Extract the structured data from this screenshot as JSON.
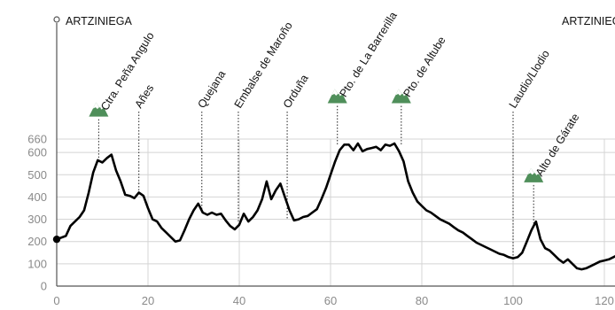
{
  "chart_data": {
    "type": "line",
    "title": "",
    "xlabel": "",
    "ylabel": "",
    "xlim": [
      0,
      123
    ],
    "ylim": [
      0,
      660
    ],
    "x_ticks": [
      0,
      20,
      40,
      60,
      80,
      100,
      120
    ],
    "y_ticks": [
      0,
      100,
      200,
      300,
      400,
      500,
      600,
      660
    ],
    "grid": true,
    "start_label": "ARTZINIEGA",
    "end_label": "ARTZINIEGA",
    "start_point": {
      "x": 0,
      "y": 210
    },
    "series": [
      {
        "points": [
          [
            0,
            210
          ],
          [
            2,
            225
          ],
          [
            3,
            270
          ],
          [
            5,
            310
          ],
          [
            6,
            340
          ],
          [
            7,
            420
          ],
          [
            8,
            510
          ],
          [
            9,
            565
          ],
          [
            10,
            555
          ],
          [
            11,
            575
          ],
          [
            12,
            590
          ],
          [
            13,
            520
          ],
          [
            14,
            470
          ],
          [
            15,
            410
          ],
          [
            16,
            405
          ],
          [
            17,
            395
          ],
          [
            18,
            420
          ],
          [
            19,
            405
          ],
          [
            20,
            350
          ],
          [
            21,
            300
          ],
          [
            22,
            290
          ],
          [
            23,
            260
          ],
          [
            24,
            240
          ],
          [
            25,
            220
          ],
          [
            26,
            200
          ],
          [
            27,
            205
          ],
          [
            28,
            250
          ],
          [
            29,
            300
          ],
          [
            30,
            340
          ],
          [
            31,
            370
          ],
          [
            32,
            330
          ],
          [
            33,
            320
          ],
          [
            34,
            330
          ],
          [
            35,
            320
          ],
          [
            36,
            325
          ],
          [
            37,
            295
          ],
          [
            38,
            270
          ],
          [
            39,
            255
          ],
          [
            40,
            275
          ],
          [
            41,
            325
          ],
          [
            42,
            290
          ],
          [
            43,
            310
          ],
          [
            44,
            340
          ],
          [
            45,
            390
          ],
          [
            46,
            470
          ],
          [
            47,
            390
          ],
          [
            48,
            430
          ],
          [
            49,
            460
          ],
          [
            50,
            400
          ],
          [
            51,
            340
          ],
          [
            52,
            295
          ],
          [
            53,
            300
          ],
          [
            54,
            310
          ],
          [
            55,
            315
          ],
          [
            56,
            330
          ],
          [
            57,
            345
          ],
          [
            58,
            390
          ],
          [
            59,
            440
          ],
          [
            60,
            500
          ],
          [
            61,
            560
          ],
          [
            62,
            610
          ],
          [
            63,
            635
          ],
          [
            64,
            635
          ],
          [
            65,
            610
          ],
          [
            66,
            640
          ],
          [
            67,
            605
          ],
          [
            68,
            615
          ],
          [
            69,
            620
          ],
          [
            70,
            625
          ],
          [
            71,
            610
          ],
          [
            72,
            635
          ],
          [
            73,
            630
          ],
          [
            74,
            640
          ],
          [
            75,
            605
          ],
          [
            76,
            560
          ],
          [
            77,
            470
          ],
          [
            78,
            420
          ],
          [
            79,
            380
          ],
          [
            80,
            360
          ],
          [
            81,
            340
          ],
          [
            82,
            330
          ],
          [
            83,
            315
          ],
          [
            84,
            300
          ],
          [
            85,
            290
          ],
          [
            86,
            280
          ],
          [
            87,
            265
          ],
          [
            88,
            250
          ],
          [
            89,
            240
          ],
          [
            90,
            225
          ],
          [
            91,
            210
          ],
          [
            92,
            195
          ],
          [
            93,
            185
          ],
          [
            94,
            175
          ],
          [
            95,
            165
          ],
          [
            96,
            155
          ],
          [
            97,
            145
          ],
          [
            98,
            140
          ],
          [
            99,
            130
          ],
          [
            100,
            125
          ],
          [
            101,
            130
          ],
          [
            102,
            150
          ],
          [
            103,
            200
          ],
          [
            104,
            250
          ],
          [
            105,
            290
          ],
          [
            106,
            210
          ],
          [
            107,
            170
          ],
          [
            108,
            160
          ],
          [
            109,
            140
          ],
          [
            110,
            120
          ],
          [
            111,
            105
          ],
          [
            112,
            120
          ],
          [
            113,
            100
          ],
          [
            114,
            80
          ],
          [
            115,
            75
          ],
          [
            116,
            80
          ],
          [
            117,
            90
          ],
          [
            118,
            100
          ],
          [
            119,
            110
          ],
          [
            120,
            115
          ],
          [
            121,
            120
          ],
          [
            122,
            130
          ],
          [
            123,
            140
          ]
        ]
      }
    ],
    "places": [
      {
        "name": "Ctra. Peña Angulo",
        "x": 9.2,
        "y": 570,
        "mountain": true
      },
      {
        "name": "Añes",
        "x": 18,
        "y": 420,
        "mountain": false
      },
      {
        "name": "Quejana",
        "x": 31.8,
        "y": 330,
        "mountain": false
      },
      {
        "name": "Embalse de Maroño",
        "x": 39.8,
        "y": 290,
        "mountain": false
      },
      {
        "name": "Orduña",
        "x": 50.5,
        "y": 300,
        "mountain": false
      },
      {
        "name": "Pto. de La Barrerilla",
        "x": 61.5,
        "y": 630,
        "mountain": true
      },
      {
        "name": "Pto. de Altube",
        "x": 75.5,
        "y": 630,
        "mountain": true
      },
      {
        "name": "Laudio/Llodio",
        "x": 100,
        "y": 130,
        "mountain": false
      },
      {
        "name": "Alto de Gárate",
        "x": 104.5,
        "y": 275,
        "mountain": true
      }
    ],
    "colors": {
      "line": "#000000",
      "grid": "#d4d4d4",
      "tick_text": "#8a8a8a",
      "mountain_green": "#4f8f5a",
      "mountain_snow": "#ffffff"
    }
  }
}
